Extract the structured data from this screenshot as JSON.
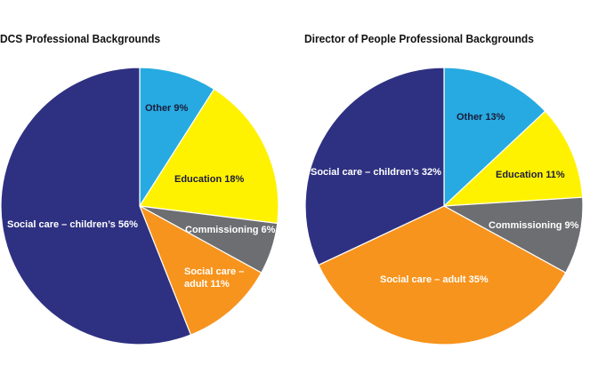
{
  "chart_data": [
    {
      "type": "pie",
      "title": "DCS Professional Backgrounds",
      "slices": [
        {
          "label": "Other",
          "value": 9,
          "color": "#27aae1",
          "label_text": "Other 9%",
          "text_color": "#1b1b3a"
        },
        {
          "label": "Education",
          "value": 18,
          "color": "#fff200",
          "label_text": "Education 18%",
          "text_color": "#1b1b3a"
        },
        {
          "label": "Commissioning",
          "value": 6,
          "color": "#6d6e71",
          "label_text": "Commissioning 6%",
          "text_color": "#ffffff"
        },
        {
          "label": "Social care – adult",
          "value": 11,
          "color": "#f7941d",
          "label_text": [
            "Social care –",
            "adult 11%"
          ],
          "text_color": "#ffffff"
        },
        {
          "label": "Social care – children's",
          "value": 56,
          "color": "#2e3181",
          "label_text": "Social care – children’s 56%",
          "text_color": "#ffffff"
        }
      ]
    },
    {
      "type": "pie",
      "title": "Director of People Professional Backgrounds",
      "slices": [
        {
          "label": "Other",
          "value": 13,
          "color": "#27aae1",
          "label_text": "Other 13%",
          "text_color": "#1b1b3a"
        },
        {
          "label": "Education",
          "value": 11,
          "color": "#fff200",
          "label_text": "Education 11%",
          "text_color": "#1b1b3a"
        },
        {
          "label": "Commissioning",
          "value": 9,
          "color": "#6d6e71",
          "label_text": "Commissioning 9%",
          "text_color": "#ffffff"
        },
        {
          "label": "Social care – adult",
          "value": 35,
          "color": "#f7941d",
          "label_text": "Social care  – adult 35%",
          "text_color": "#ffffff"
        },
        {
          "label": "Social care – children's",
          "value": 32,
          "color": "#2e3181",
          "label_text": "Social care  – children’s 32%",
          "text_color": "#ffffff"
        }
      ]
    }
  ]
}
